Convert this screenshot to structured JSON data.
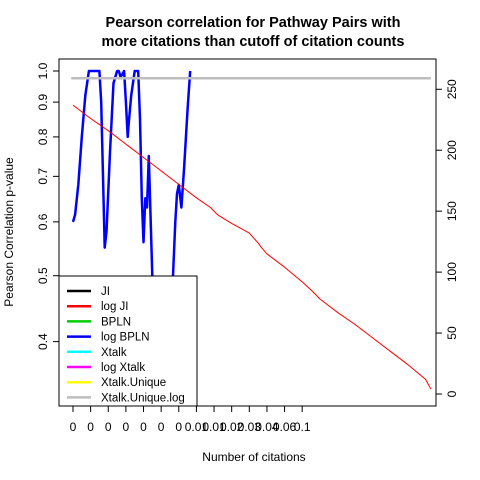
{
  "chart_data": {
    "type": "line",
    "title_line1": "Pearson correlation for Pathway Pairs with",
    "title_line2": "more citations than cutoff of citation counts",
    "xlabel": "Number of citations",
    "ylabel": "Pearson Correlation p-value",
    "x_tick_labels": [
      "0",
      "0",
      "0",
      "0",
      "0",
      "0",
      "0",
      "0.01",
      "0.01",
      "0.02",
      "0.03",
      "0.04",
      "0.06",
      "0.1"
    ],
    "y_left": {
      "scale": "log",
      "ticks": [
        0.4,
        0.5,
        0.6,
        0.7,
        0.8,
        0.9,
        1.0
      ],
      "tick_labels": [
        "0.4",
        "0.5",
        "0.6",
        "0.7",
        "0.8",
        "0.9",
        "1.0"
      ],
      "lim": [
        0.335,
        1.0
      ]
    },
    "y_right": {
      "ticks": [
        0,
        50,
        100,
        150,
        200,
        250
      ],
      "tick_labels": [
        "0",
        "50",
        "100",
        "150",
        "200",
        "250"
      ],
      "lim": [
        0,
        265
      ]
    },
    "legend": {
      "position": "bottom-left",
      "entries": [
        {
          "label": "JI",
          "color": "#000000"
        },
        {
          "label": "log JI",
          "color": "#ff0000"
        },
        {
          "label": "BPLN",
          "color": "#00cd00"
        },
        {
          "label": "log BPLN",
          "color": "#0000ff"
        },
        {
          "label": "Xtalk",
          "color": "#00ffff"
        },
        {
          "label": "log Xtalk",
          "color": "#ff00ff"
        },
        {
          "label": "Xtalk.Unique",
          "color": "#ffff00"
        },
        {
          "label": "Xtalk.Unique.log",
          "color": "#bebebe"
        }
      ]
    },
    "series": [
      {
        "name": "log BPLN",
        "color": "#0000ff",
        "axis": "left",
        "x": [
          1,
          1.12,
          1.3,
          1.5,
          1.7,
          1.9,
          2.1,
          2.3,
          2.5,
          2.6,
          2.7,
          2.8,
          2.9,
          3.1,
          3.3,
          3.5,
          3.6,
          3.7,
          3.8,
          3.9,
          4.0,
          4.1,
          4.15,
          4.3,
          4.5,
          4.7,
          4.8,
          4.9,
          5.0,
          5.1,
          5.2,
          5.3,
          5.5,
          5.6,
          5.8,
          6.0,
          6.2,
          6.4,
          6.6,
          6.7,
          6.8,
          6.9,
          7.0,
          7.15,
          7.3,
          7.5,
          7.65
        ],
        "y": [
          0.6,
          0.615,
          0.68,
          0.8,
          0.92,
          1.0,
          1.0,
          1.0,
          1.0,
          0.9,
          0.7,
          0.55,
          0.58,
          0.76,
          0.96,
          1.0,
          1.0,
          0.98,
          0.99,
          1.0,
          0.9,
          0.8,
          0.83,
          0.92,
          1.0,
          1.0,
          0.85,
          0.65,
          0.56,
          0.65,
          0.63,
          0.75,
          0.5,
          0.45,
          0.4,
          0.38,
          0.37,
          0.4,
          0.45,
          0.52,
          0.6,
          0.66,
          0.68,
          0.63,
          0.72,
          0.88,
          1.0
        ]
      },
      {
        "name": "Xtalk.Unique.log",
        "color": "#bebebe",
        "axis": "right",
        "x": [
          0.9,
          21.3
        ],
        "y": [
          259,
          259
        ]
      },
      {
        "name": "log JI",
        "color": "#ff0000",
        "axis": "right",
        "x": [
          1.0,
          2.0,
          3.0,
          4.0,
          5.0,
          6.0,
          7.0,
          8.0,
          8.8,
          9.2,
          10.0,
          11.0,
          11.5,
          11.7,
          12.0,
          13.0,
          14.0,
          14.6,
          15.0,
          16.0,
          17.0,
          18.0,
          19.0,
          20.0,
          21.0,
          21.3
        ],
        "y": [
          237,
          226,
          216,
          205,
          194,
          183,
          172,
          161,
          153,
          147,
          140,
          132,
          124,
          120,
          115,
          104,
          92,
          84,
          78,
          67,
          57,
          46,
          35,
          24,
          12,
          4
        ]
      }
    ]
  }
}
